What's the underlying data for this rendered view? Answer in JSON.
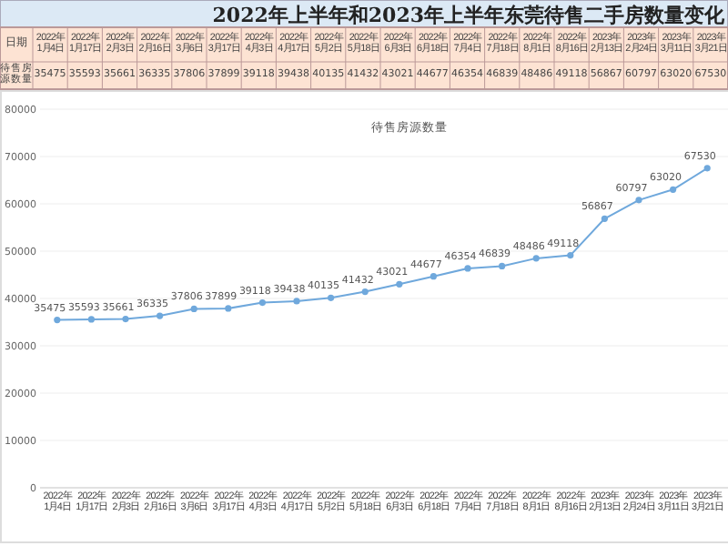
{
  "chart_data": [
    {
      "type": "other",
      "title": "2022年上半年和2023年上半年东莞待售二手房数量变化",
      "categories": [
        "2022年1月4日",
        "2022年1月17日",
        "2022年2月3日",
        "2022年2月16日",
        "2022年3月6日",
        "2022年3月17日",
        "2022年4月3日",
        "2022年4月17日",
        "2022年5月2日",
        "2022年5月18日",
        "2022年6月3日",
        "2022年6月18日",
        "2022年7月4日",
        "2022年7月18日",
        "2022年8月1日",
        "2022年8月16日",
        "2023年2月13日",
        "2023年2月24日",
        "2023年3月11日",
        "2023年3月21日"
      ],
      "values": [
        35475,
        35593,
        35661,
        36335,
        37806,
        37899,
        39118,
        39438,
        40135,
        41432,
        43021,
        44677,
        46354,
        46839,
        48486,
        49118,
        56867,
        60797,
        63020,
        67530
      ],
      "annotations": [
        "日期",
        "待售房源数量"
      ],
      "data_labels": true
    },
    {
      "type": "line",
      "categories": [
        "2022年1月4日",
        "2022年1月17日",
        "2022年2月3日",
        "2022年2月16日",
        "2022年3月6日",
        "2022年3月17日",
        "2022年4月3日",
        "2022年4月17日",
        "2022年5月2日",
        "2022年5月18日",
        "2022年6月3日",
        "2022年6月18日",
        "2022年7月4日",
        "2022年7月18日",
        "2022年8月1日",
        "2022年8月16日",
        "2023年2月13日",
        "2023年2月24日",
        "2023年3月11日",
        "2023年3月21日"
      ],
      "series": [
        {
          "name": "待售房源数量",
          "color": "#6fa8dc",
          "values": [
            35475,
            35593,
            35661,
            36335,
            37806,
            37899,
            39118,
            39438,
            40135,
            41432,
            43021,
            44677,
            46354,
            46839,
            48486,
            49118,
            56867,
            60797,
            63020,
            67530
          ],
          "value_labels": [
            "35475",
            "35593",
            "35661",
            "36335",
            "37806",
            "37899",
            "39118",
            "39438",
            "40135",
            "41432",
            "43021",
            "44677",
            "46354",
            "46839",
            "48486",
            "49118",
            "56867",
            "60797",
            "63020",
            "67530"
          ]
        }
      ],
      "ylim": [
        0,
        80000
      ],
      "yticks": [
        0,
        10000,
        20000,
        30000,
        40000,
        50000,
        60000,
        70000,
        80000
      ],
      "grid": "y",
      "marker": "circle",
      "line_style": "solid"
    }
  ]
}
